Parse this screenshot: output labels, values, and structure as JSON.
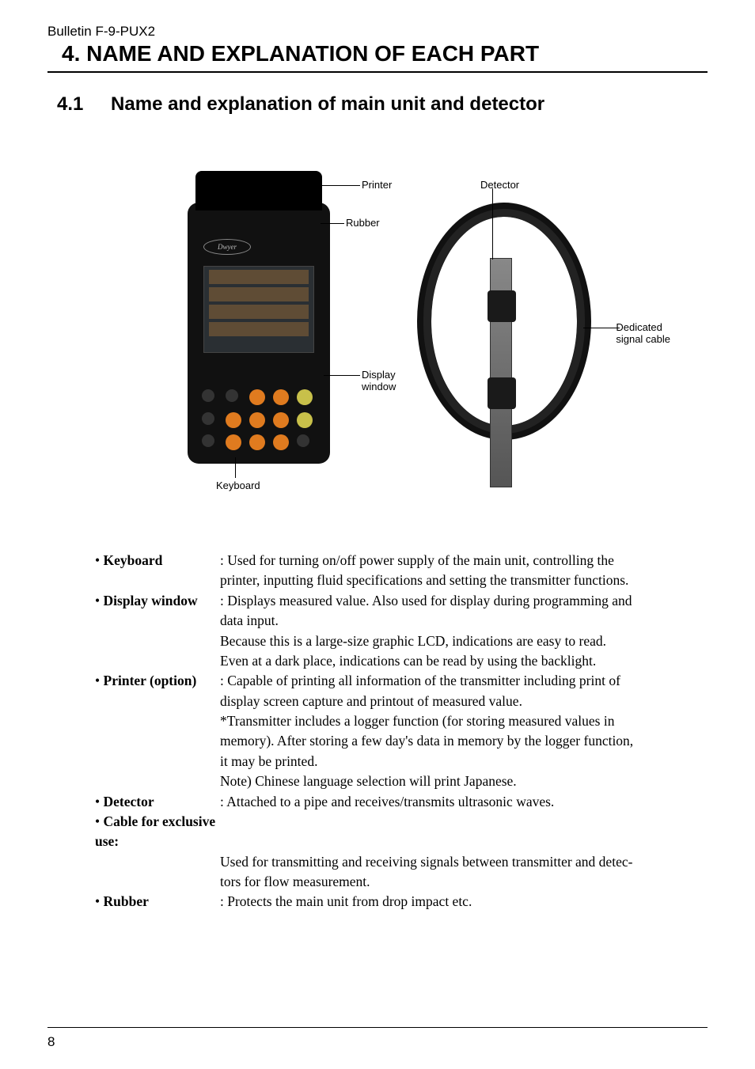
{
  "header": {
    "bulletin": "Bulletin F-9-PUX2",
    "chapter_number": "4.",
    "chapter_title": "NAME AND EXPLANATION OF EACH PART",
    "section_number": "4.1",
    "section_title": "Name and explanation of main unit and detector"
  },
  "figure": {
    "labels": {
      "printer": "Printer",
      "detector": "Detector",
      "rubber": "Rubber",
      "display_window": "Display\nwindow",
      "keyboard": "Keyboard",
      "dedicated_cable": "Dedicated\nsignal cable"
    },
    "brand": "Dwyer"
  },
  "definitions": [
    {
      "term": "• Keyboard",
      "lines": [
        ": Used for turning on/off power supply of the main unit, controlling the",
        "printer, inputting fluid specifications and setting the transmitter functions."
      ]
    },
    {
      "term": "• Display window",
      "lines": [
        ": Displays measured value.  Also used for display during programming and",
        "data input.",
        "Because this is a large-size graphic LCD, indications are easy to read.",
        "Even at a dark place, indications can be read by using the backlight."
      ]
    },
    {
      "term": "• Printer (option)",
      "lines": [
        ": Capable of printing all information of the transmitter including print of",
        "display screen capture and printout of measured value.",
        "*Transmitter includes a logger function (for storing measured values in",
        "memory).  After storing a few day's data in memory by the logger function,",
        "it may be printed.",
        "Note) Chinese language selection will print Japanese."
      ]
    },
    {
      "term": "• Detector",
      "lines": [
        ": Attached to a pipe and receives/transmits ultrasonic waves."
      ]
    },
    {
      "term": "• Cable for exclusive use:",
      "full_row": true,
      "lines": [
        "Used for transmitting and receiving signals between transmitter and detec-",
        "tors for flow measurement."
      ]
    },
    {
      "term": "• Rubber",
      "lines": [
        ": Protects the main unit from drop impact etc."
      ]
    }
  ],
  "page_number": "8"
}
